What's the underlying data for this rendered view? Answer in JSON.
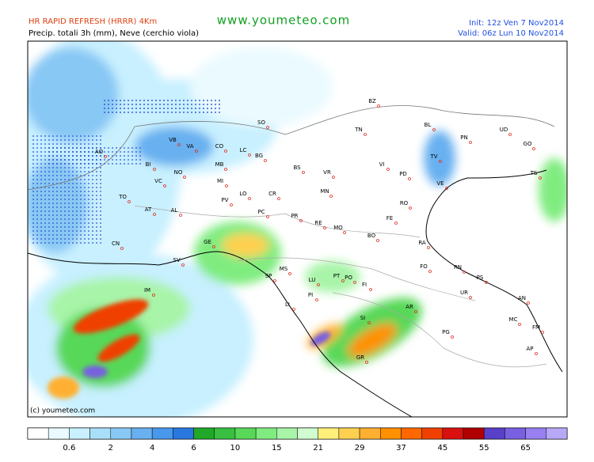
{
  "header": {
    "model": "HR RAPID REFRESH (HRRR) 4Km",
    "product": "Precip. totali 3h (mm), Neve (cerchio viola)",
    "site": "www.youmeteo.com",
    "init": "Init: 12z Ven  7   Nov2014",
    "valid": "Valid: 06z Lun  10 Nov2014"
  },
  "map": {
    "copyright": "(c) youmeteo.com",
    "cities": [
      "BZ",
      "TN",
      "BL",
      "PN",
      "UD",
      "GO",
      "TS",
      "VB",
      "VA",
      "CO",
      "LC",
      "SO",
      "BG",
      "BS",
      "VR",
      "VI",
      "TV",
      "PD",
      "VE",
      "RO",
      "BI",
      "NO",
      "MB",
      "MI",
      "VC",
      "TO",
      "AT",
      "AL",
      "PV",
      "LO",
      "CR",
      "MN",
      "PC",
      "PR",
      "RE",
      "MO",
      "FE",
      "BO",
      "RA",
      "GE",
      "SV",
      "CN",
      "IM",
      "SP",
      "MS",
      "LU",
      "PT",
      "PO",
      "FI",
      "FO",
      "RN",
      "PS",
      "PI",
      "LI",
      "AR",
      "SI",
      "GR",
      "PG",
      "UR",
      "AN",
      "MC",
      "FM",
      "AP",
      "AO"
    ]
  },
  "legend": {
    "colors": [
      "#ffffff",
      "#eafaff",
      "#c8f0ff",
      "#a8e0fa",
      "#88c8f4",
      "#68b0f0",
      "#4898ec",
      "#2878e0",
      "#20a828",
      "#38c040",
      "#58d858",
      "#80ec80",
      "#a8f4a8",
      "#d0fcd0",
      "#fff07a",
      "#ffd050",
      "#ffb030",
      "#ff9000",
      "#ff6800",
      "#f04000",
      "#d81010",
      "#b00000",
      "#5840c8",
      "#7860e0",
      "#9880f0",
      "#b8a8f8"
    ],
    "labels": [
      "0.6",
      "2",
      "4",
      "6",
      "10",
      "15",
      "21",
      "29",
      "37",
      "45",
      "55",
      "65"
    ]
  }
}
